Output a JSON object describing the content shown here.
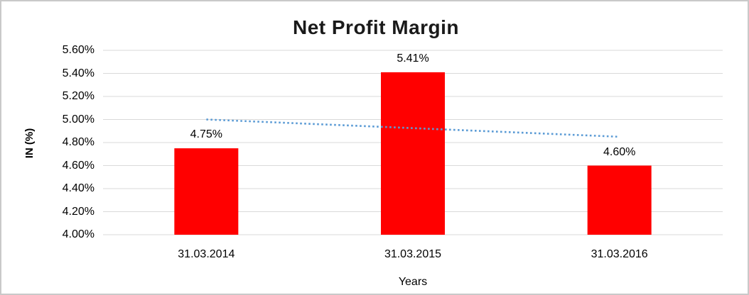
{
  "chart_data": {
    "type": "bar",
    "title": "Net Profit Margin",
    "xlabel": "Years",
    "ylabel": "IN (%)",
    "categories": [
      "31.03.2014",
      "31.03.2015",
      "31.03.2016"
    ],
    "values": [
      4.75,
      5.41,
      4.6
    ],
    "data_labels": [
      "4.75%",
      "5.41%",
      "4.60%"
    ],
    "ylim": [
      4.0,
      5.6
    ],
    "yticks": [
      {
        "value": 4.0,
        "label": "4.00%"
      },
      {
        "value": 4.2,
        "label": "4.20%"
      },
      {
        "value": 4.4,
        "label": "4.40%"
      },
      {
        "value": 4.6,
        "label": "4.60%"
      },
      {
        "value": 4.8,
        "label": "4.80%"
      },
      {
        "value": 5.0,
        "label": "5.00%"
      },
      {
        "value": 5.2,
        "label": "5.20%"
      },
      {
        "value": 5.4,
        "label": "5.40%"
      },
      {
        "value": 5.6,
        "label": "5.60%"
      }
    ],
    "grid": true,
    "legend": "none",
    "bar_color": "#FF0000",
    "gridline_color": "#D9D9D9",
    "trendline": {
      "type": "linear",
      "style": "dotted",
      "color": "#5B9BD5",
      "start_value": 5.0,
      "end_value": 4.85
    }
  }
}
